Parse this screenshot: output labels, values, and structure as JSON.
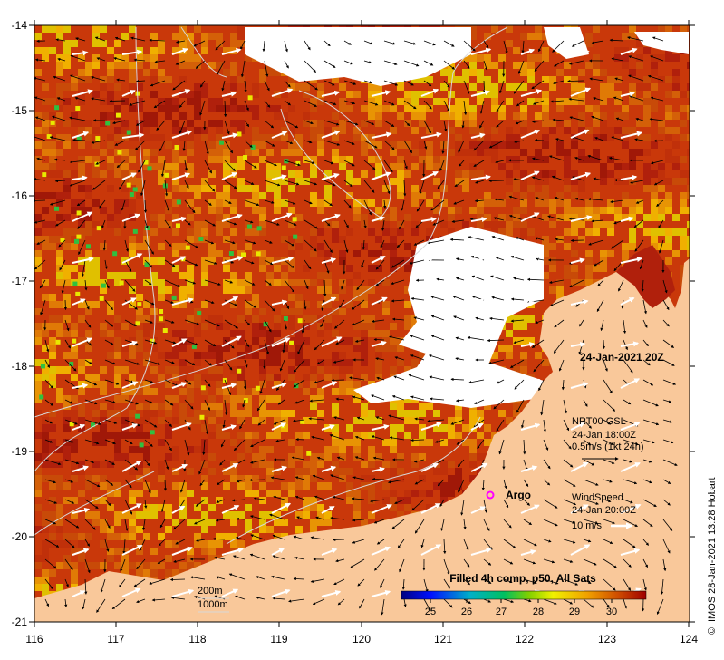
{
  "map": {
    "lon_range": [
      116,
      124
    ],
    "lat_range": [
      -21,
      -14
    ],
    "lon_ticks": [
      "116",
      "117",
      "118",
      "119",
      "120",
      "121",
      "122",
      "123",
      "124"
    ],
    "lat_ticks": [
      "-14",
      "-15",
      "-16",
      "-17",
      "-18",
      "-19",
      "-20",
      "-21"
    ],
    "date_label": "24-Jan-2021 20Z",
    "credit": "IMOS 28-Jan-2021 13:28 Hobart",
    "copyright_symbol": "©",
    "argo_label": "Argo",
    "current_legend": {
      "title": "NRT00 GSL",
      "time": "24-Jan 18:00Z",
      "scale": "0.5m/s (1kt 24h)"
    },
    "wind_legend": {
      "title": "WindSpeed",
      "time": "24-Jan 20:00Z",
      "scale": "10 m/s"
    },
    "isobath_legend": [
      "200m",
      "1000m"
    ],
    "colorbar": {
      "title": "Filled 4h comp, p50, All Sats",
      "ticks": [
        "25",
        "26",
        "27",
        "28",
        "29",
        "30"
      ],
      "range": [
        24.5,
        30.5
      ]
    },
    "colors": {
      "land": "#f9c89a",
      "ocean_warm": "#b0200c",
      "ocean_mid": "#d46008",
      "argo": "#ff00ff"
    }
  }
}
